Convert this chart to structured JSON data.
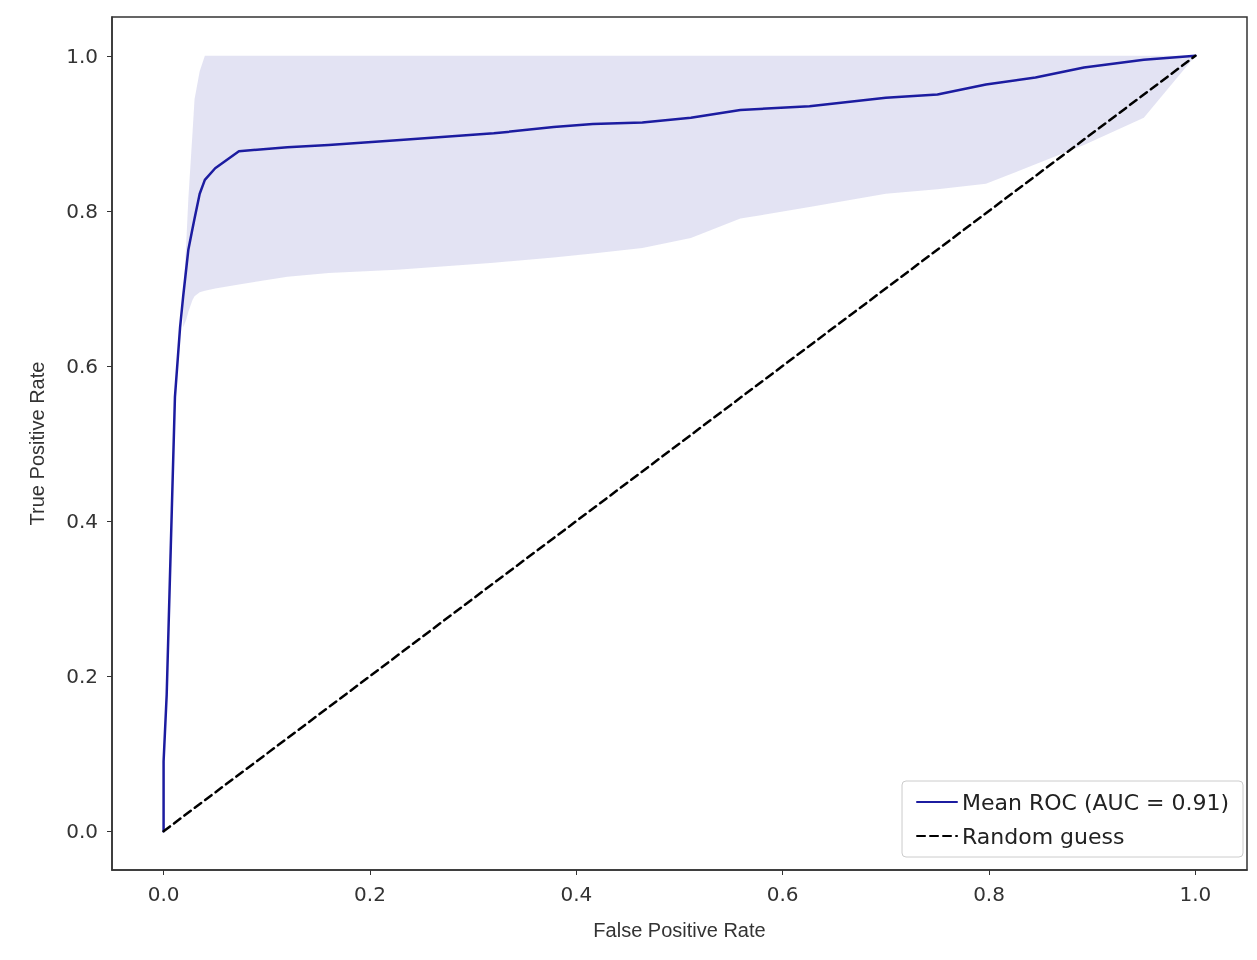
{
  "chart_data": {
    "type": "line",
    "xlabel": "False Positive Rate",
    "ylabel": "True Positive Rate",
    "xlim": [
      -0.05,
      1.05
    ],
    "ylim": [
      -0.05,
      1.05
    ],
    "xticks": [
      {
        "value": 0,
        "label": "0.0"
      },
      {
        "value": 0.2,
        "label": "0.2"
      },
      {
        "value": 0.4,
        "label": "0.4"
      },
      {
        "value": 0.6,
        "label": "0.6"
      },
      {
        "value": 0.8,
        "label": "0.8"
      },
      {
        "value": 1,
        "label": "1.0"
      }
    ],
    "yticks": [
      {
        "value": 0,
        "label": "0.0"
      },
      {
        "value": 0.2,
        "label": "0.2"
      },
      {
        "value": 0.4,
        "label": "0.4"
      },
      {
        "value": 0.6,
        "label": "0.6"
      },
      {
        "value": 0.8,
        "label": "0.8"
      },
      {
        "value": 1,
        "label": "1.0"
      }
    ],
    "grid": false,
    "legend": "bottom right",
    "marker": "none",
    "series": [
      {
        "name": "Mean ROC (AUC = 0.91)",
        "color": "#1c1ca0",
        "line_style": "solid",
        "x": [
          0,
          0,
          0.003,
          0.007,
          0.011,
          0.016,
          0.019,
          0.022,
          0.024,
          0.028,
          0.03,
          0.035,
          0.04,
          0.05,
          0.073,
          0.12,
          0.16,
          0.226,
          0.32,
          0.378,
          0.416,
          0.464,
          0.511,
          0.559,
          0.626,
          0.7,
          0.75,
          0.797,
          0.845,
          0.892,
          0.95,
          1
        ],
        "values": [
          0,
          0.09,
          0.176,
          0.368,
          0.56,
          0.65,
          0.69,
          0.726,
          0.75,
          0.777,
          0.79,
          0.822,
          0.84,
          0.855,
          0.877,
          0.882,
          0.885,
          0.891,
          0.9,
          0.908,
          0.912,
          0.914,
          0.92,
          0.93,
          0.935,
          0.946,
          0.95,
          0.963,
          0.972,
          0.985,
          0.995,
          1
        ],
        "lower": [
          null,
          null,
          null,
          null,
          null,
          null,
          0.65,
          0.66,
          0.67,
          0.685,
          0.69,
          0.695,
          0.697,
          0.7,
          0.705,
          0.715,
          0.72,
          0.724,
          0.733,
          0.74,
          0.745,
          0.752,
          0.765,
          0.79,
          0.805,
          0.822,
          0.828,
          0.835,
          0.86,
          0.885,
          0.92,
          1
        ],
        "upper": [
          null,
          null,
          null,
          null,
          null,
          null,
          0.69,
          0.76,
          0.816,
          0.9,
          0.944,
          0.98,
          1,
          1,
          1,
          1,
          1,
          1,
          1,
          1,
          1,
          1,
          1,
          1,
          1,
          1,
          1,
          1,
          1,
          1,
          1,
          1
        ]
      },
      {
        "name": "Random guess",
        "color": "#000000",
        "line_style": "dashed",
        "x": [
          0,
          1
        ],
        "values": [
          0,
          1
        ]
      }
    ]
  }
}
